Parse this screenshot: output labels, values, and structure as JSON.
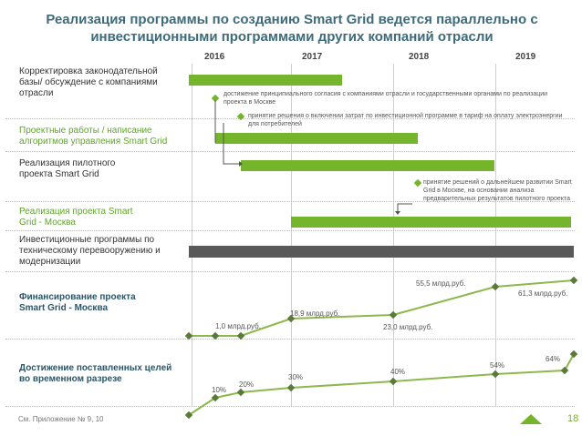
{
  "title": "Реализация программы по созданию Smart Grid ведется параллельно с инвестиционными программами других компаний отрасли",
  "years": [
    "2016",
    "2017",
    "2018",
    "2019"
  ],
  "rows": [
    {
      "label": "Корректировка законодательной базы/ обсуждение с компаниями отрасли"
    },
    {
      "label": "Проектные работы / написание алгоритмов управления Smart Grid"
    },
    {
      "label": "Реализация пилотного проекта Smart Grid"
    },
    {
      "label": "Реализация проекта Smart Grid - Москва"
    },
    {
      "label": "Инвестиционные программы по техническому перевооружению и модернизации"
    }
  ],
  "notes": [
    "достижение принципиального согласия с компаниями отрасли и государственными органами по реализации проекта в Москве",
    "принятие решения о включении затрат по инвестиционной программе в тариф на оплату электроэнергии для потребителей",
    "принятие решений о дальнейшем развитии Smart Grid в Москве, на основании анализа предварительных результатов пилотного проекта"
  ],
  "funding": {
    "label": "Финансирование проекта Smart Grid - Москва",
    "values": [
      "1,0 млрд.руб.",
      "18,9 млрд.руб.",
      "23,0 млрд.руб.",
      "55,5 млрд.руб.",
      "61,3 млрд.руб."
    ]
  },
  "targets": {
    "label": "Достижение поставленных целей во временном разрезе",
    "values": [
      "10%",
      "20%",
      "30%",
      "40%",
      "54%",
      "64%"
    ]
  },
  "footer": "См. Приложение № 9, 10",
  "page_number": "18",
  "colors": {
    "green": "#75b52c",
    "gray": "#595959",
    "title": "#3d6b7a"
  }
}
